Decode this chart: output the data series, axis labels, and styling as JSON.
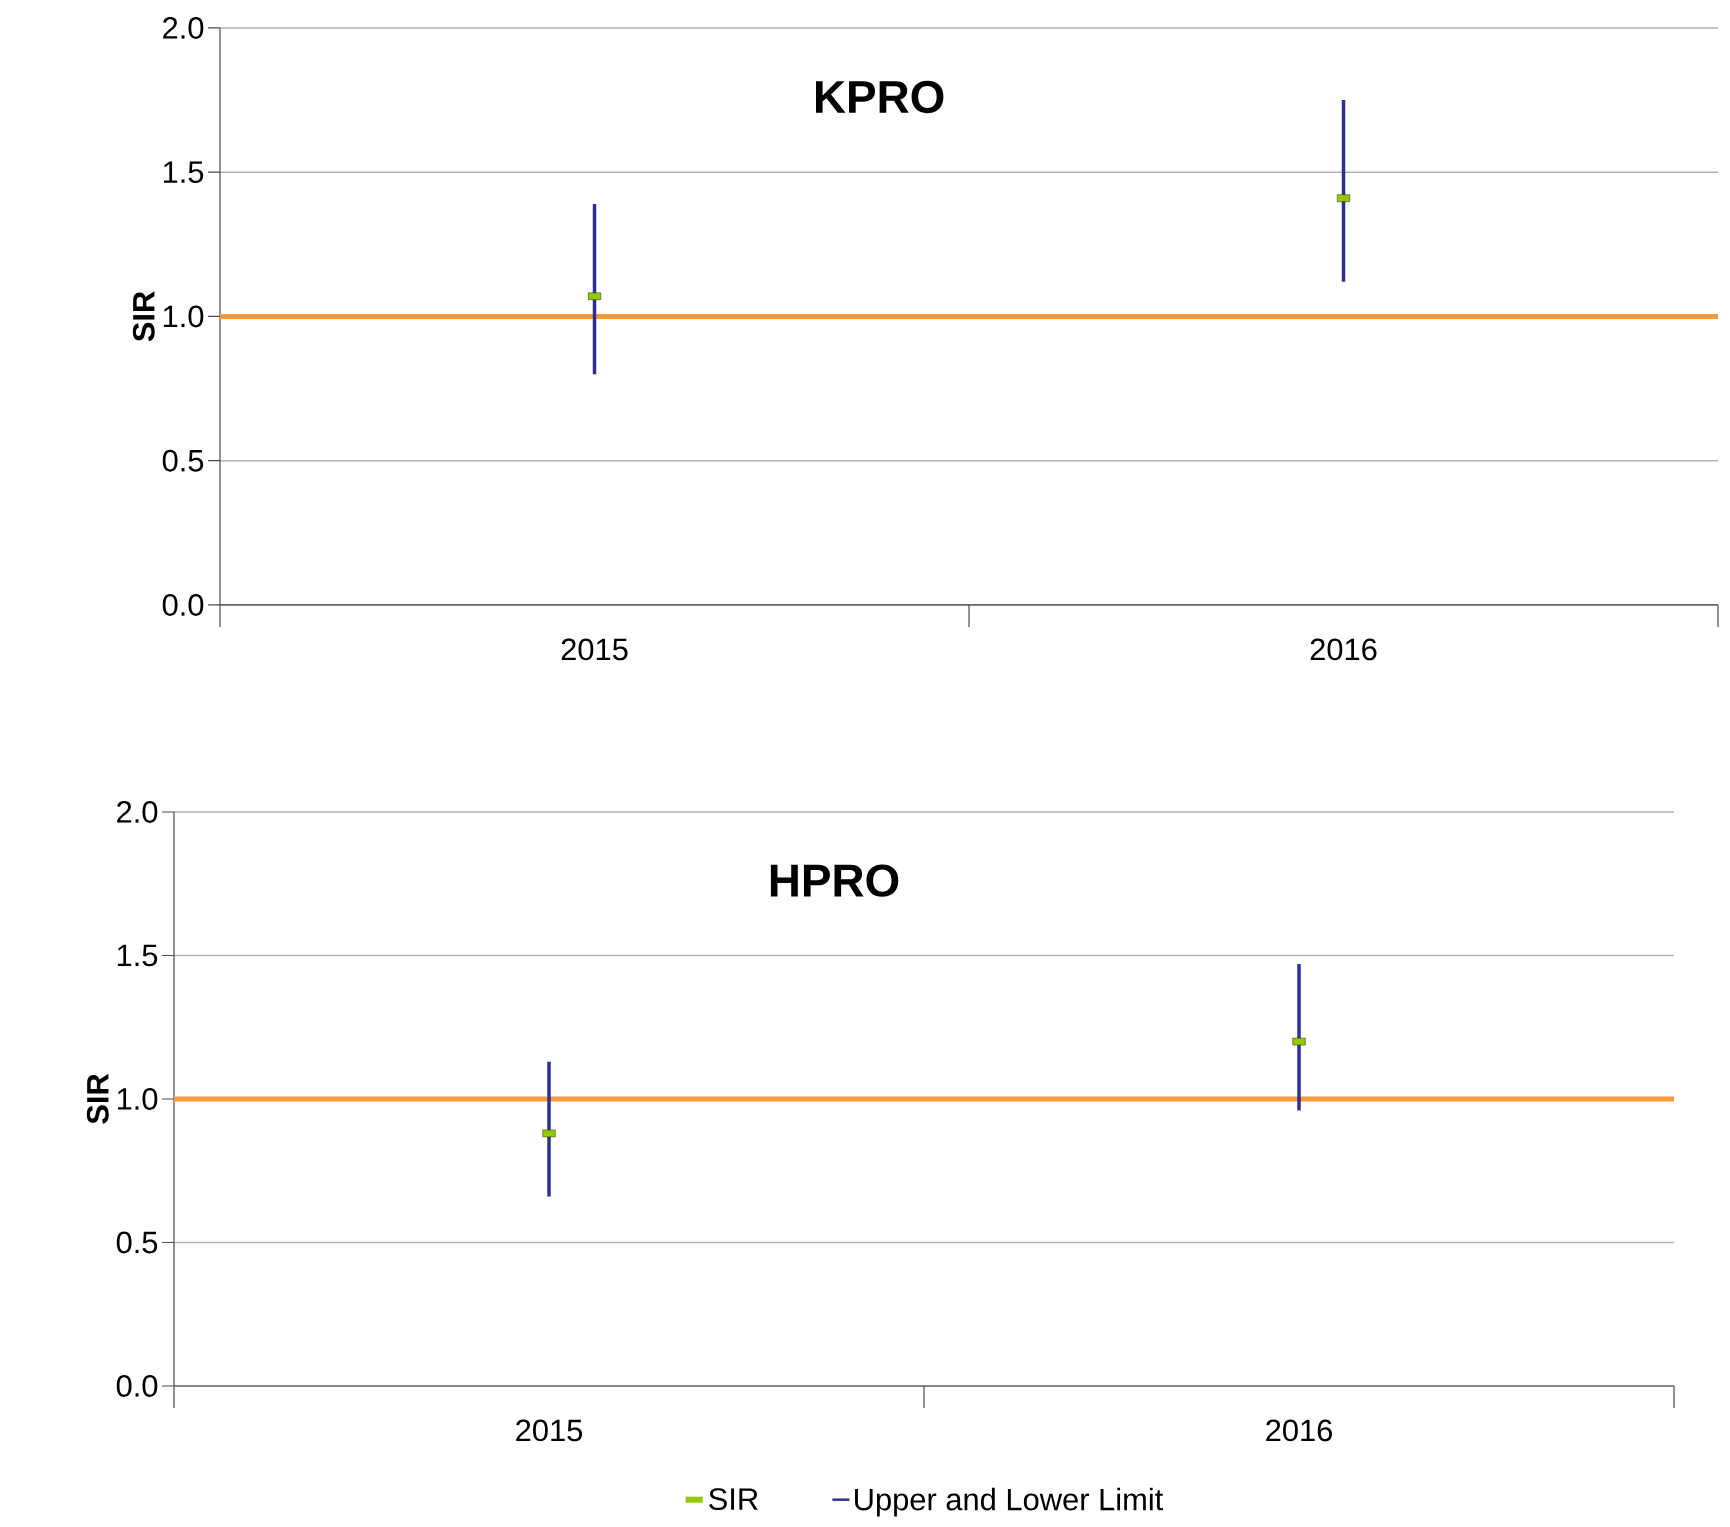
{
  "chart_data": [
    {
      "type": "scatter",
      "title": "KPRO",
      "ylabel": "SIR",
      "categories": [
        "2015",
        "2016"
      ],
      "ylim": [
        0,
        2
      ],
      "yticks": [
        {
          "value": 0,
          "label": "0.0"
        },
        {
          "value": 0.5,
          "label": "0.5"
        },
        {
          "value": 1,
          "label": "1.0"
        },
        {
          "value": 1.5,
          "label": "1.5"
        },
        {
          "value": 2,
          "label": "2.0"
        }
      ],
      "grid": "y",
      "ref_lines": [
        {
          "axis": "y",
          "value": 1,
          "color": "#f79a3a"
        }
      ],
      "series": [
        {
          "type": "bar",
          "color": "#2e3192",
          "base": [
            0.8,
            1.12
          ],
          "values": [
            0.59,
            0.63
          ]
        },
        {
          "color": "#92c800",
          "values": [
            1.07,
            1.41
          ]
        }
      ]
    },
    {
      "type": "scatter",
      "title": "HPRO",
      "ylabel": "SIR",
      "categories": [
        "2015",
        "2016"
      ],
      "ylim": [
        0,
        2
      ],
      "yticks": [
        {
          "value": 0,
          "label": "0.0"
        },
        {
          "value": 0.5,
          "label": "0.5"
        },
        {
          "value": 1,
          "label": "1.0"
        },
        {
          "value": 1.5,
          "label": "1.5"
        },
        {
          "value": 2,
          "label": "2.0"
        }
      ],
      "grid": "y",
      "legend": "bottom",
      "ref_lines": [
        {
          "axis": "y",
          "value": 1,
          "color": "#f79a3a"
        }
      ],
      "series": [
        {
          "name": "Upper and Lower Limit",
          "type": "bar",
          "color": "#2e3192",
          "base": [
            0.66,
            0.96
          ],
          "values": [
            0.47,
            0.51
          ]
        },
        {
          "name": "SIR",
          "color": "#92c800",
          "values": [
            0.88,
            1.2
          ]
        }
      ]
    }
  ]
}
